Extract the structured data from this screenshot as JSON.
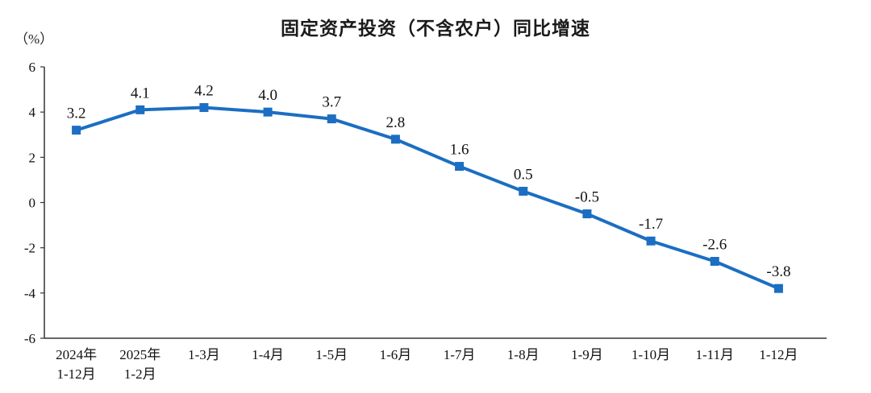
{
  "chart_data": {
    "type": "line",
    "title": "固定资产投资（不含农户）同比增速",
    "ylabel": "（%）",
    "xlabel": "",
    "categories": [
      [
        "2024年",
        "1-12月"
      ],
      [
        "2025年",
        "1-2月"
      ],
      [
        "1-3月"
      ],
      [
        "1-4月"
      ],
      [
        "1-5月"
      ],
      [
        "1-6月"
      ],
      [
        "1-7月"
      ],
      [
        "1-8月"
      ],
      [
        "1-9月"
      ],
      [
        "1-10月"
      ],
      [
        "1-11月"
      ],
      [
        "1-12月"
      ]
    ],
    "values": [
      3.2,
      4.1,
      4.2,
      4.0,
      3.7,
      2.8,
      1.6,
      0.5,
      -0.5,
      -1.7,
      -2.6,
      -3.8
    ],
    "ylim": [
      -6,
      6
    ],
    "ytick_step": 2,
    "grid": false,
    "legend": "none",
    "line_color": "#1b6ec2",
    "axis_color": "#333333",
    "marker": "square"
  }
}
